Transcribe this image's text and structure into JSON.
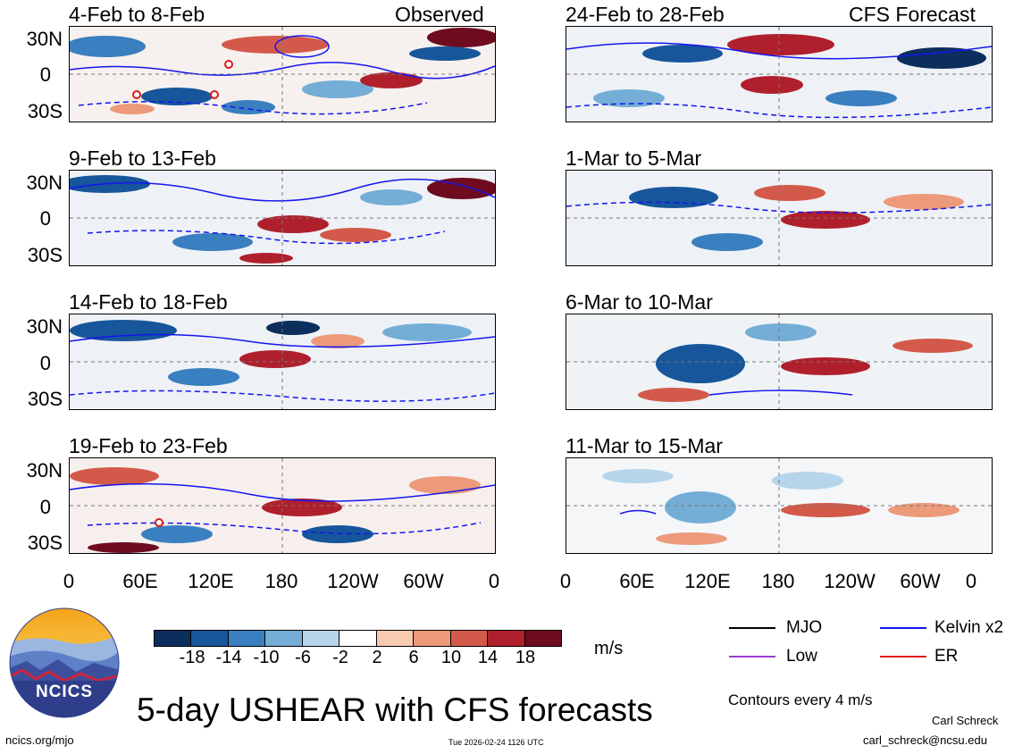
{
  "panels": [
    {
      "title": "4-Feb to 8-Feb",
      "label": "Observed"
    },
    {
      "title": "9-Feb to 13-Feb",
      "label": ""
    },
    {
      "title": "14-Feb to 18-Feb",
      "label": ""
    },
    {
      "title": "19-Feb to 23-Feb",
      "label": ""
    },
    {
      "title": "24-Feb to 28-Feb",
      "label": "CFS Forecast"
    },
    {
      "title": "1-Mar to 5-Mar",
      "label": ""
    },
    {
      "title": "6-Mar to 10-Mar",
      "label": ""
    },
    {
      "title": "11-Mar to 15-Mar",
      "label": ""
    }
  ],
  "lat_labels": [
    "30N",
    "0",
    "30S"
  ],
  "lon_labels": [
    "0",
    "60E",
    "120E",
    "180",
    "120W",
    "60W",
    "0"
  ],
  "colorbar": {
    "ticks": [
      "-18",
      "-14",
      "-10",
      "-6",
      "-2",
      "2",
      "6",
      "10",
      "14",
      "18"
    ],
    "unit": "m/s",
    "colors": [
      "#0b2e5c",
      "#17569a",
      "#3a7fbf",
      "#74aed6",
      "#b6d4ea",
      "#ffffff",
      "#f8cbb0",
      "#ec9a7a",
      "#d35a4a",
      "#b0202c",
      "#6e0b1f"
    ]
  },
  "legend": [
    {
      "label": "MJO",
      "color": "#000000"
    },
    {
      "label": "Kelvin x2",
      "color": "#1515ee"
    },
    {
      "label": "Low",
      "color": "#9a3bd0"
    },
    {
      "label": "ER",
      "color": "#e01818"
    }
  ],
  "logo_text": "NCICS",
  "main_title": "5-day USHEAR with CFS forecasts",
  "contour_note": "Contours every 4 m/s",
  "author": "Carl Schreck",
  "email": "carl_schreck@ncsu.edu",
  "site": "ncics.org/mjo",
  "timestamp": "Tue 2026-02-24 1126 UTC"
}
